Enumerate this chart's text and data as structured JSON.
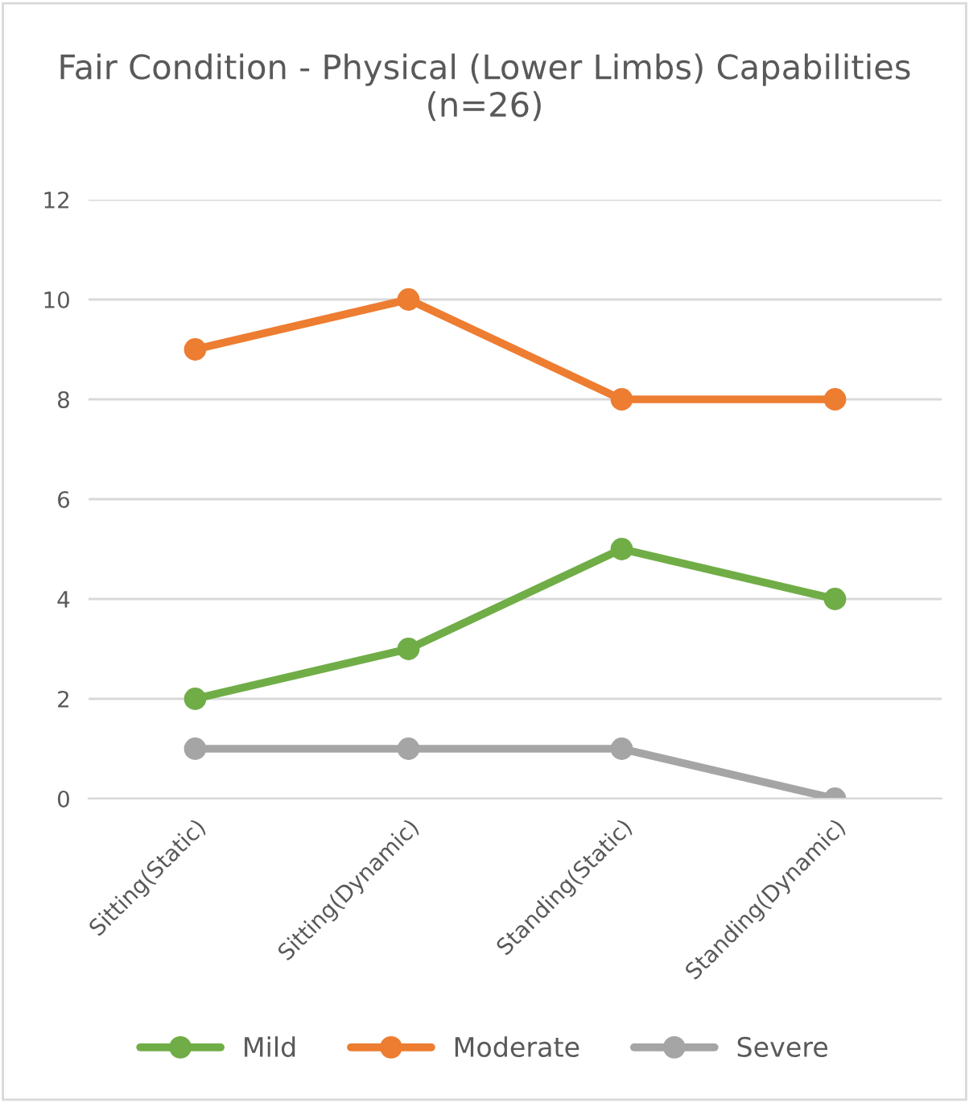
{
  "chart_data": {
    "type": "line",
    "title": "Fair Condition - Physical (Lower Limbs) Capabilities (n=26)",
    "categories": [
      "Sitting(Static)",
      "Sitting(Dynamic)",
      "Standing(Static)",
      "Standing(Dynamic)"
    ],
    "series": [
      {
        "name": "Mild",
        "color": "#70ad47",
        "values": [
          2,
          3,
          5,
          4
        ]
      },
      {
        "name": "Moderate",
        "color": "#ed7d31",
        "values": [
          9,
          10,
          8,
          8
        ]
      },
      {
        "name": "Severe",
        "color": "#a5a5a5",
        "values": [
          1,
          1,
          1,
          0
        ]
      }
    ],
    "ylim": [
      0,
      12
    ],
    "yticks": [
      0,
      2,
      4,
      6,
      8,
      10,
      12
    ],
    "grid": "y",
    "legend": "bottom",
    "marker": "circle",
    "line_style": "solid"
  }
}
